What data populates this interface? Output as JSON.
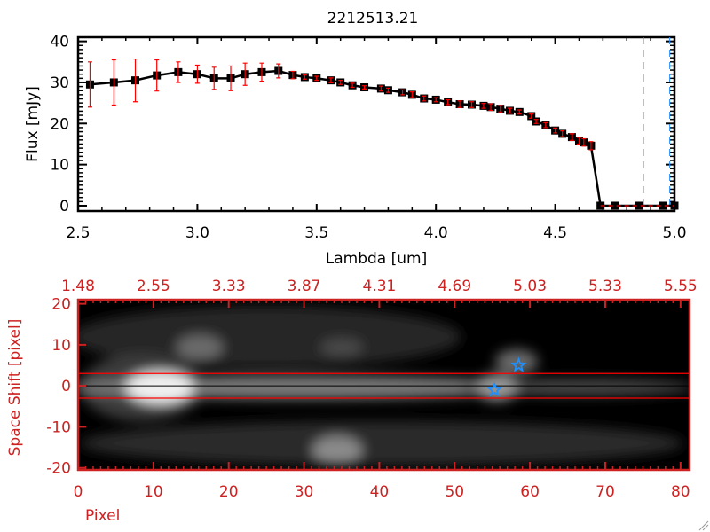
{
  "chart_data": [
    {
      "type": "line",
      "title": "2212513.21",
      "xlabel": "Lambda [um]",
      "ylabel": "Flux [mJy]",
      "xlim": [
        2.5,
        5.0
      ],
      "ylim": [
        -1.3,
        41
      ],
      "xticks": [
        "2.5",
        "3.0",
        "3.5",
        "4.0",
        "4.5",
        "5.0"
      ],
      "yticks": [
        "0",
        "10",
        "20",
        "30",
        "40"
      ],
      "x": [
        2.55,
        2.65,
        2.74,
        2.83,
        2.92,
        3.0,
        3.07,
        3.14,
        3.2,
        3.27,
        3.34,
        3.4,
        3.45,
        3.5,
        3.56,
        3.6,
        3.65,
        3.7,
        3.77,
        3.8,
        3.86,
        3.9,
        3.95,
        4.0,
        4.05,
        4.1,
        4.15,
        4.2,
        4.23,
        4.27,
        4.31,
        4.35,
        4.4,
        4.42,
        4.46,
        4.5,
        4.53,
        4.57,
        4.6,
        4.62,
        4.65,
        4.69,
        4.75,
        4.85,
        4.95,
        5.0
      ],
      "y": [
        29.5,
        30,
        30.5,
        31.7,
        32.5,
        32,
        31,
        31,
        32,
        32.5,
        32.8,
        31.8,
        31.3,
        31,
        30.5,
        30,
        29.3,
        28.8,
        28.5,
        28.1,
        27.6,
        27,
        26.1,
        25.8,
        25.2,
        24.7,
        24.6,
        24.3,
        24,
        23.6,
        23.1,
        22.8,
        21.8,
        20.5,
        19.6,
        18.3,
        17.5,
        16.7,
        15.8,
        15.4,
        14.6,
        0,
        0,
        0,
        0,
        0
      ],
      "yerr": [
        5.5,
        5.5,
        5.2,
        3.8,
        2.5,
        2.2,
        2.7,
        3,
        2.7,
        2.2,
        1.7,
        0.9,
        0.5,
        0.5,
        0.6,
        0.5,
        0.5,
        0.4,
        0.6,
        0.5,
        0.6,
        0.7,
        0.6,
        0.5,
        0.6,
        0.8,
        0.7,
        0.6,
        0.8,
        0.8,
        0.6,
        0.5,
        0.5,
        0.5,
        0.6,
        0.6,
        0.7,
        0.8,
        0.8,
        0.9,
        1.0,
        0,
        0,
        0,
        0,
        0
      ],
      "vlines": [
        4.87,
        4.98
      ],
      "zero_line_from": 4.69,
      "colors": {
        "line": "#000000",
        "errorbar": "#ff0000",
        "vline1": "#888888",
        "vline2": "#1e90ff",
        "zeroline": "#ff0000"
      }
    },
    {
      "type": "heatmap",
      "xlabel": "Pixel",
      "ylabel": "Space Shift [pixel]",
      "xlim": [
        0,
        81.2
      ],
      "ylim": [
        -20.5,
        21
      ],
      "xticks": [
        "0",
        "10",
        "20",
        "30",
        "40",
        "50",
        "60",
        "70",
        "80"
      ],
      "top_xticks": [
        "1.48",
        "2.55",
        "3.33",
        "3.87",
        "4.31",
        "4.69",
        "5.03",
        "5.33",
        "5.55"
      ],
      "yticks": [
        "20",
        "10",
        "0",
        "-10",
        "-20"
      ],
      "extraction_lines": [
        3,
        -3
      ],
      "center_line": 0,
      "sources": [
        {
          "label": "star",
          "x": 58.5,
          "y": 5
        },
        {
          "label": "star",
          "x": 55.3,
          "y": -1
        }
      ],
      "colors": {
        "axis": "#cc2222",
        "extraction": "#ff0000",
        "center": "#000000",
        "marker": "#1e90ff"
      }
    }
  ]
}
